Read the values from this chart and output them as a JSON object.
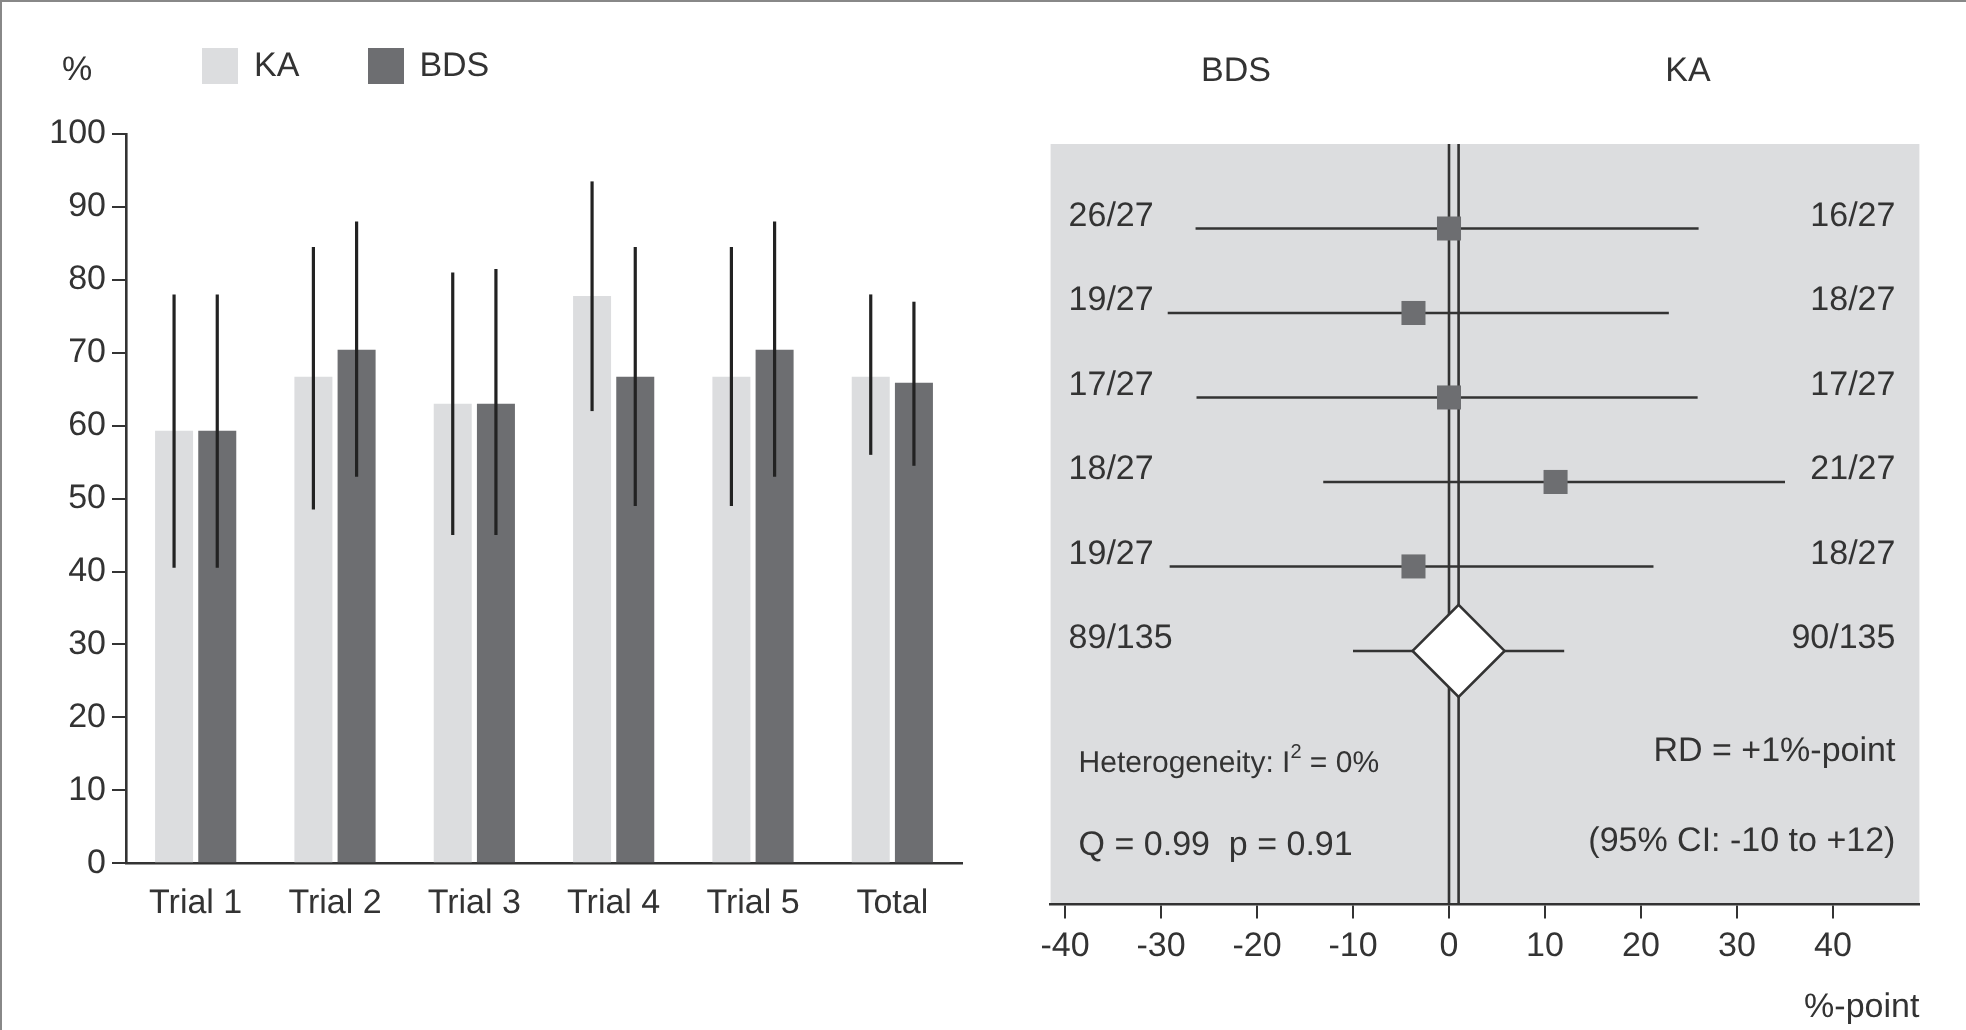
{
  "chart_data": [
    {
      "type": "bar",
      "ylabel": "%",
      "categories": [
        "Trial 1",
        "Trial 2",
        "Trial 3",
        "Trial 4",
        "Trial 5",
        "Total"
      ],
      "series": [
        {
          "name": "KA",
          "color": "#dcdddf",
          "values": [
            59.3,
            66.7,
            63.0,
            77.8,
            66.7,
            66.7
          ],
          "errors": [
            [
              40.5,
              78
            ],
            [
              48.5,
              84.5
            ],
            [
              45,
              81
            ],
            [
              62,
              93.5
            ],
            [
              49,
              84.5
            ],
            [
              56,
              78
            ]
          ]
        },
        {
          "name": "BDS",
          "color": "#6d6e71",
          "values": [
            59.3,
            70.4,
            63.0,
            66.7,
            70.4,
            65.9
          ],
          "errors": [
            [
              40.5,
              78
            ],
            [
              53,
              88
            ],
            [
              45,
              81.5
            ],
            [
              49,
              84.5
            ],
            [
              53,
              88
            ],
            [
              54.5,
              77
            ]
          ]
        }
      ],
      "ylim": [
        0,
        100
      ],
      "yticks": [
        0,
        10,
        20,
        30,
        40,
        50,
        60,
        70,
        80,
        90,
        100
      ],
      "legend": "top left"
    },
    {
      "type": "scatter",
      "orientation": "horizontal",
      "categories": [
        "26/27",
        "19/27",
        "17/27",
        "18/27",
        "19/27",
        "89/135"
      ],
      "y2_categories": [
        "16/27",
        "18/27",
        "17/27",
        "21/27",
        "18/27",
        "90/135"
      ],
      "xlabel": "%-point",
      "series": [
        {
          "color": "#6d6e71",
          "marker": "square",
          "values": [
            0,
            -3.7,
            0,
            11.1,
            -3.7,
            null
          ],
          "errors": [
            [
              -26.4,
              26
            ],
            [
              -29.3,
              22.9
            ],
            [
              -26.3,
              25.9
            ],
            [
              -13.1,
              35
            ],
            [
              -29.1,
              21.3
            ],
            null
          ]
        },
        {
          "color": "#ffffff",
          "marker": "diamond",
          "values": [
            null,
            null,
            null,
            null,
            null,
            1
          ],
          "errors": [
            null,
            null,
            null,
            null,
            null,
            [
              -10,
              12
            ]
          ]
        }
      ],
      "xlim": [
        -41.5,
        49
      ],
      "xticks": [
        -40,
        -30,
        -20,
        -10,
        0,
        10,
        20,
        30,
        40
      ],
      "ref_lines": [
        {
          "axis": "x",
          "value": 0
        },
        {
          "axis": "x",
          "value": 1
        }
      ],
      "annotations": [
        "BDS",
        "KA",
        "Heterogeneity: I$^{2}$ = 0%",
        "Q = 0.99  p = 0.91",
        "RD = +1%-point",
        "(95% CI: -10 to +12)"
      ]
    }
  ]
}
